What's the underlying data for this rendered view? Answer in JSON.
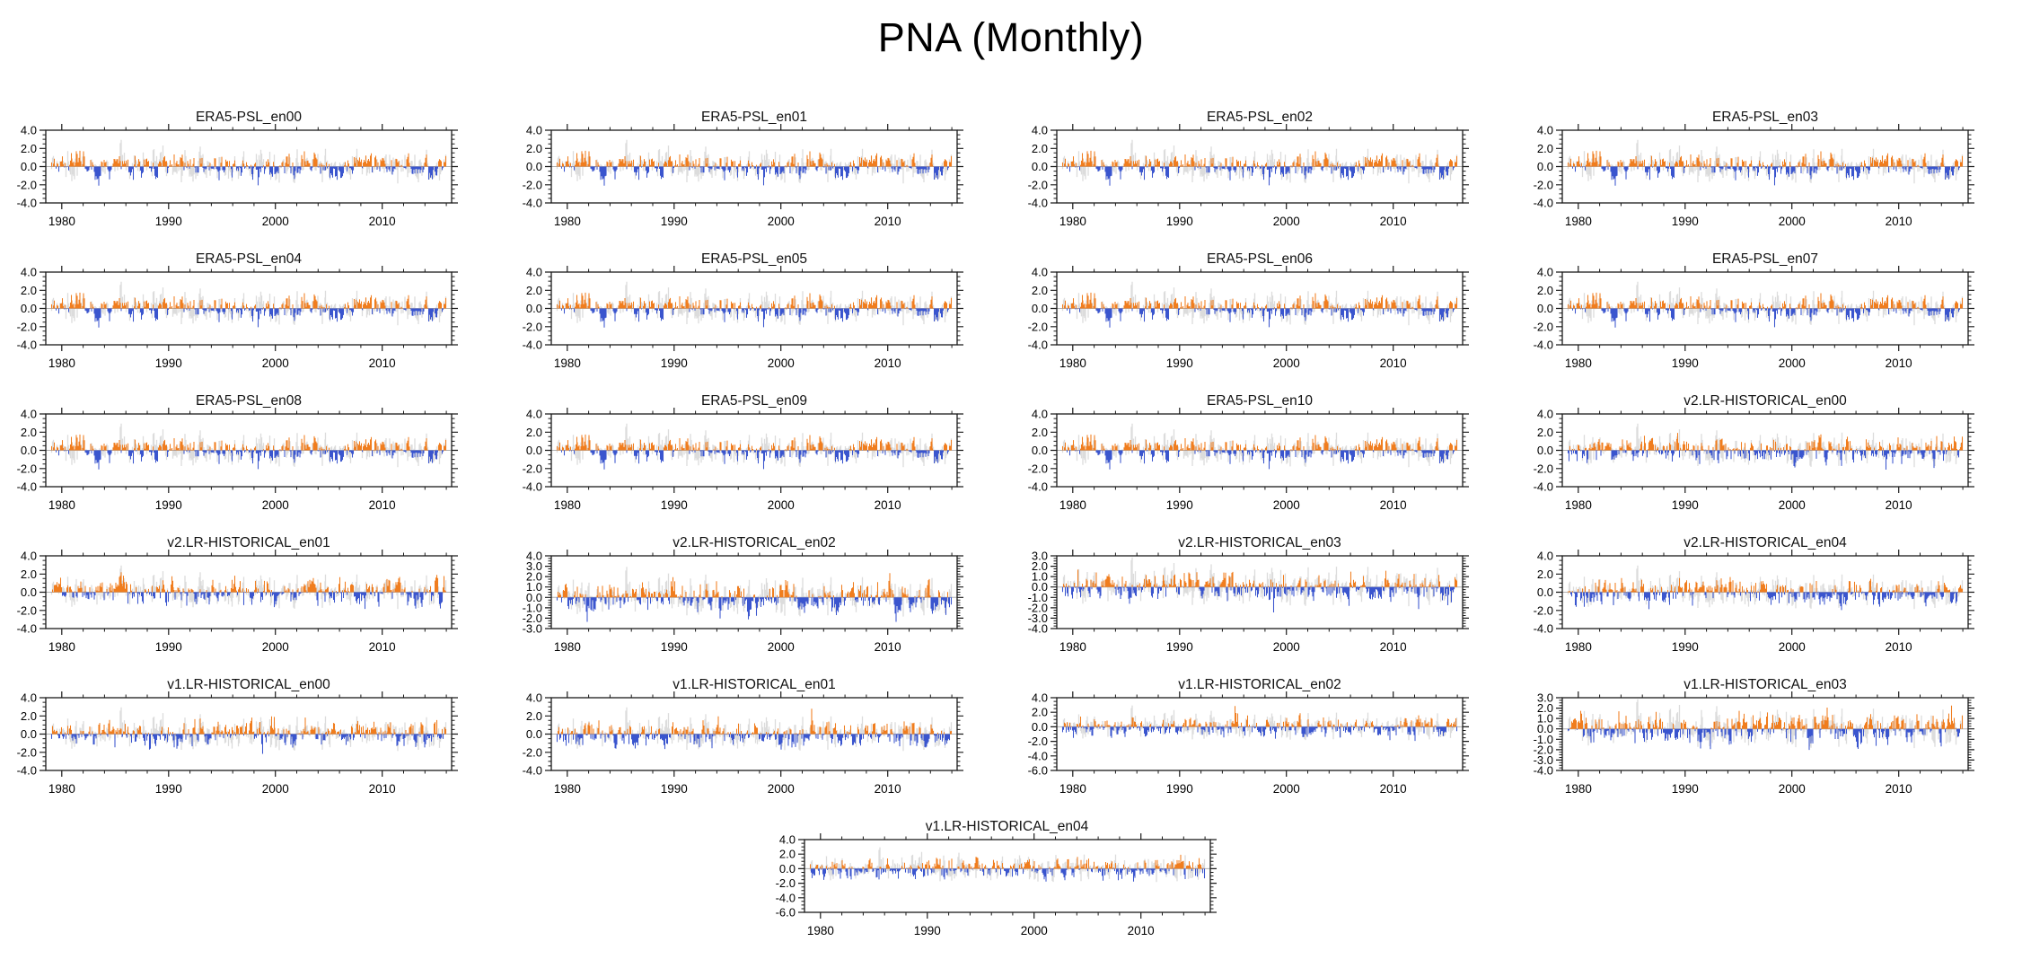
{
  "page_title": "PNA (Monthly)",
  "chart_data": {
    "type": "bar",
    "title": "PNA (Monthly)",
    "description": "Monthly PNA index anomaly bar series per ensemble member; positive bars orange, negative bars blue, light-gray reference series drawn behind each panel",
    "x_start_year": 1979,
    "n_months": 444,
    "x_axis_range": [
      1978.5,
      2016.5
    ],
    "xticks": [
      1980,
      1990,
      2000,
      2010
    ],
    "xtick_labels": [
      "1980",
      "1990",
      "2000",
      "2010"
    ],
    "x_minor_step_years": 2,
    "grid": "off",
    "legend": "none",
    "reference_seed": 84,
    "colors": {
      "positive_bar": "#F07D1E",
      "negative_bar": "#3A55CE",
      "reference_bar": "#DCDCDC",
      "zero_line": "#B0B0B0",
      "frame": "#1a1a1a"
    },
    "panels": [
      {
        "title": "ERA5-PSL_en00",
        "ylim": [
          -4,
          4
        ],
        "ytick_labels": [
          "4.0",
          "2.0",
          "0.0",
          "-2.0",
          "-4.0"
        ],
        "seed": 84,
        "scale": 0.93
      },
      {
        "title": "ERA5-PSL_en01",
        "ylim": [
          -4,
          4
        ],
        "ytick_labels": [
          "4.0",
          "2.0",
          "0.0",
          "-2.0",
          "-4.0"
        ],
        "seed": 84,
        "scale": 0.93
      },
      {
        "title": "ERA5-PSL_en02",
        "ylim": [
          -4,
          4
        ],
        "ytick_labels": [
          "4.0",
          "2.0",
          "0.0",
          "-2.0",
          "-4.0"
        ],
        "seed": 84,
        "scale": 0.93
      },
      {
        "title": "ERA5-PSL_en03",
        "ylim": [
          -4,
          4
        ],
        "ytick_labels": [
          "4.0",
          "2.0",
          "0.0",
          "-2.0",
          "-4.0"
        ],
        "seed": 84,
        "scale": 0.93
      },
      {
        "title": "ERA5-PSL_en04",
        "ylim": [
          -4,
          4
        ],
        "ytick_labels": [
          "4.0",
          "2.0",
          "0.0",
          "-2.0",
          "-4.0"
        ],
        "seed": 84,
        "scale": 0.93
      },
      {
        "title": "ERA5-PSL_en05",
        "ylim": [
          -4,
          4
        ],
        "ytick_labels": [
          "4.0",
          "2.0",
          "0.0",
          "-2.0",
          "-4.0"
        ],
        "seed": 84,
        "scale": 0.93
      },
      {
        "title": "ERA5-PSL_en06",
        "ylim": [
          -4,
          4
        ],
        "ytick_labels": [
          "4.0",
          "2.0",
          "0.0",
          "-2.0",
          "-4.0"
        ],
        "seed": 84,
        "scale": 0.93
      },
      {
        "title": "ERA5-PSL_en07",
        "ylim": [
          -4,
          4
        ],
        "ytick_labels": [
          "4.0",
          "2.0",
          "0.0",
          "-2.0",
          "-4.0"
        ],
        "seed": 84,
        "scale": 0.93
      },
      {
        "title": "ERA5-PSL_en08",
        "ylim": [
          -4,
          4
        ],
        "ytick_labels": [
          "4.0",
          "2.0",
          "0.0",
          "-2.0",
          "-4.0"
        ],
        "seed": 84,
        "scale": 0.93
      },
      {
        "title": "ERA5-PSL_en09",
        "ylim": [
          -4,
          4
        ],
        "ytick_labels": [
          "4.0",
          "2.0",
          "0.0",
          "-2.0",
          "-4.0"
        ],
        "seed": 84,
        "scale": 0.93
      },
      {
        "title": "ERA5-PSL_en10",
        "ylim": [
          -4,
          4
        ],
        "ytick_labels": [
          "4.0",
          "2.0",
          "0.0",
          "-2.0",
          "-4.0"
        ],
        "seed": 84,
        "scale": 0.93
      },
      {
        "title": "v2.LR-HISTORICAL_en00",
        "ylim": [
          -4,
          4
        ],
        "ytick_labels": [
          "4.0",
          "2.0",
          "0.0",
          "-2.0",
          "-4.0"
        ],
        "seed": 201,
        "scale": 1.0
      },
      {
        "title": "v2.LR-HISTORICAL_en01",
        "ylim": [
          -4,
          4
        ],
        "ytick_labels": [
          "4.0",
          "2.0",
          "0.0",
          "-2.0",
          "-4.0"
        ],
        "seed": 317,
        "scale": 1.0
      },
      {
        "title": "v2.LR-HISTORICAL_en02",
        "ylim": [
          -3,
          4
        ],
        "ytick_labels": [
          "4.0",
          "3.0",
          "2.0",
          "1.0",
          "0.0",
          "-1.0",
          "-2.0",
          "-3.0"
        ],
        "seed": 433,
        "scale": 1.0
      },
      {
        "title": "v2.LR-HISTORICAL_en03",
        "ylim": [
          -4,
          3
        ],
        "ytick_labels": [
          "3.0",
          "2.0",
          "1.0",
          "0.0",
          "-1.0",
          "-2.0",
          "-3.0",
          "-4.0"
        ],
        "seed": 549,
        "scale": 1.0
      },
      {
        "title": "v2.LR-HISTORICAL_en04",
        "ylim": [
          -4,
          4
        ],
        "ytick_labels": [
          "4.0",
          "2.0",
          "0.0",
          "-2.0",
          "-4.0"
        ],
        "seed": 665,
        "scale": 1.0
      },
      {
        "title": "v1.LR-HISTORICAL_en00",
        "ylim": [
          -4,
          4
        ],
        "ytick_labels": [
          "4.0",
          "2.0",
          "0.0",
          "-2.0",
          "-4.0"
        ],
        "seed": 781,
        "scale": 1.0
      },
      {
        "title": "v1.LR-HISTORICAL_en01",
        "ylim": [
          -4,
          4
        ],
        "ytick_labels": [
          "4.0",
          "2.0",
          "0.0",
          "-2.0",
          "-4.0"
        ],
        "seed": 897,
        "scale": 1.0
      },
      {
        "title": "v1.LR-HISTORICAL_en02",
        "ylim": [
          -6,
          4
        ],
        "ytick_labels": [
          "4.0",
          "2.0",
          "0.0",
          "-2.0",
          "-4.0",
          "-6.0"
        ],
        "seed": 1013,
        "scale": 1.0
      },
      {
        "title": "v1.LR-HISTORICAL_en03",
        "ylim": [
          -4,
          3
        ],
        "ytick_labels": [
          "3.0",
          "2.0",
          "1.0",
          "0.0",
          "-1.0",
          "-2.0",
          "-3.0",
          "-4.0"
        ],
        "seed": 1129,
        "scale": 1.0
      },
      {
        "title": "v1.LR-HISTORICAL_en04",
        "ylim": [
          -6,
          4
        ],
        "ytick_labels": [
          "4.0",
          "2.0",
          "0.0",
          "-2.0",
          "-4.0",
          "-6.0"
        ],
        "seed": 1245,
        "scale": 1.0
      }
    ]
  }
}
